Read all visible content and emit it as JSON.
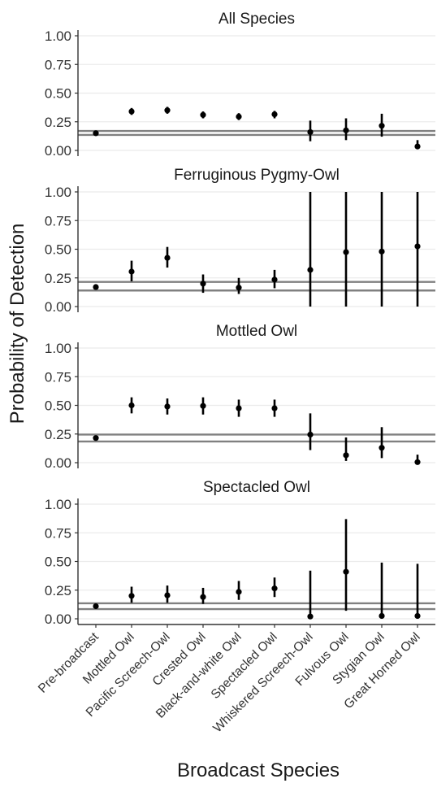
{
  "chart_data": {
    "type": "scatter",
    "subtype": "point-range (estimate with vertical interval), faceted",
    "xlabel": "Broadcast Species",
    "ylabel": "Probability of Detection",
    "ylim": [
      0,
      1
    ],
    "yticks": [
      "0.00",
      "0.25",
      "0.50",
      "0.75",
      "1.00"
    ],
    "categories": [
      "Pre-broadcast",
      "Mottled Owl",
      "Pacific Screech-Owl",
      "Crested Owl",
      "Black-and-white Owl",
      "Spectacled Owl",
      "Whiskered Screech-Owl",
      "Fulvous Owl",
      "Stygian Owl",
      "Great Horned Owl"
    ],
    "grid": true,
    "legend": "none",
    "colors": {
      "point": "#000000",
      "reference_line": "#808080",
      "gridline": "#ebebeb",
      "frame": "#333333"
    },
    "panels": [
      {
        "title": "All Species",
        "values": [
          0.15,
          0.34,
          0.35,
          0.31,
          0.295,
          0.315,
          0.16,
          0.175,
          0.215,
          0.035
        ],
        "lower": [
          0.15,
          0.31,
          0.32,
          0.28,
          0.265,
          0.28,
          0.08,
          0.09,
          0.12,
          0.01
        ],
        "upper": [
          0.15,
          0.37,
          0.38,
          0.34,
          0.325,
          0.345,
          0.26,
          0.28,
          0.32,
          0.09
        ],
        "reference_lines": [
          0.135,
          0.17
        ]
      },
      {
        "title": "Ferruginous Pygmy-Owl",
        "values": [
          0.17,
          0.305,
          0.425,
          0.2,
          0.165,
          0.235,
          0.32,
          0.475,
          0.48,
          0.525
        ],
        "lower": [
          0.17,
          0.22,
          0.34,
          0.12,
          0.11,
          0.16,
          0.0,
          0.0,
          0.0,
          0.0
        ],
        "upper": [
          0.17,
          0.4,
          0.52,
          0.28,
          0.25,
          0.32,
          1.0,
          1.0,
          1.0,
          1.0
        ],
        "reference_lines": [
          0.14,
          0.215
        ]
      },
      {
        "title": "Mottled Owl",
        "values": [
          0.215,
          0.5,
          0.49,
          0.495,
          0.475,
          0.475,
          0.245,
          0.065,
          0.13,
          0.005
        ],
        "lower": [
          0.215,
          0.43,
          0.42,
          0.42,
          0.4,
          0.4,
          0.11,
          0.015,
          0.04,
          0.0
        ],
        "upper": [
          0.215,
          0.57,
          0.56,
          0.57,
          0.55,
          0.55,
          0.43,
          0.22,
          0.31,
          0.07
        ],
        "reference_lines": [
          0.185,
          0.245
        ]
      },
      {
        "title": "Spectacled Owl",
        "values": [
          0.11,
          0.2,
          0.205,
          0.19,
          0.235,
          0.265,
          0.02,
          0.41,
          0.025,
          0.025
        ],
        "lower": [
          0.11,
          0.14,
          0.14,
          0.13,
          0.165,
          0.19,
          0.0,
          0.07,
          0.0,
          0.0
        ],
        "upper": [
          0.11,
          0.28,
          0.29,
          0.27,
          0.33,
          0.36,
          0.42,
          0.87,
          0.49,
          0.48
        ],
        "reference_lines": [
          0.085,
          0.135
        ]
      }
    ]
  }
}
